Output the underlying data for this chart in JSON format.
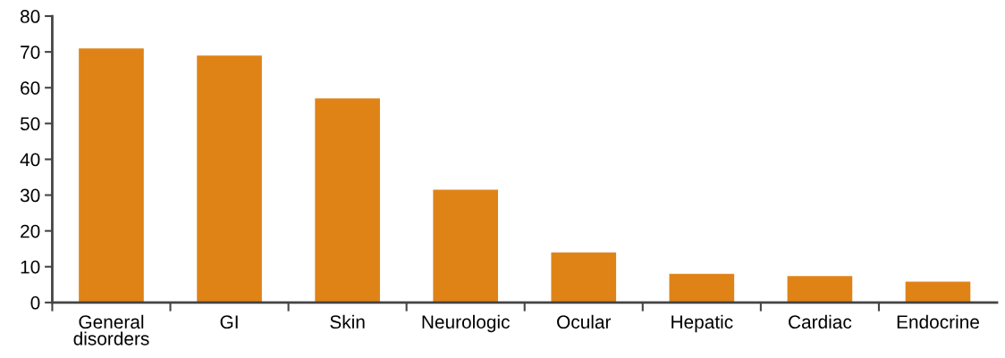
{
  "chart_data": {
    "type": "bar",
    "categories": [
      "General\ndisorders",
      "GI",
      "Skin",
      "Neurologic",
      "Ocular",
      "Hepatic",
      "Cardiac",
      "Endocrine"
    ],
    "values": [
      71,
      69,
      57,
      31.5,
      14,
      8,
      7.4,
      5.8
    ],
    "color": "#df8317",
    "ylim": [
      0,
      80
    ],
    "yticks": [
      0,
      10,
      20,
      30,
      40,
      50,
      60,
      70,
      80
    ],
    "grid": false
  }
}
